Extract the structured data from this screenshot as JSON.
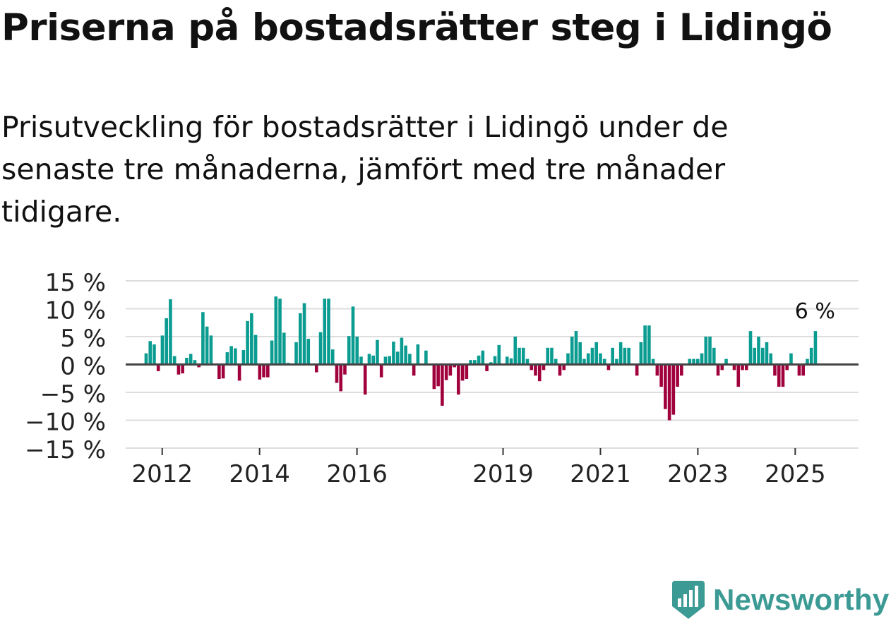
{
  "title": "Priserna på bostadsrätter steg i Lidingö",
  "subtitle": "Prisutveckling för bostadsrätter i Lidingö under de senaste tre månaderna, jämfört med tre månader tidigare.",
  "brand": "Newsworthy",
  "colors": {
    "positive": "#0b9c91",
    "negative": "#a0003c",
    "brand": "#3c9a94",
    "grid": "#dddddd",
    "zero_line": "#444444"
  },
  "chart_data": {
    "type": "bar",
    "title": "Priserna på bostadsrätter steg i Lidingö",
    "xlabel": "",
    "ylabel": "",
    "x_start": 2011.67,
    "x_step": 0.0833,
    "xlim": [
      2011.25,
      2026.3
    ],
    "ylim": [
      -15,
      15
    ],
    "yticks": [
      15,
      10,
      5,
      0,
      -5,
      -10,
      -15
    ],
    "ytick_labels": [
      "15 %",
      "10 %",
      "5 %",
      "0 %",
      "−5 %",
      "−10 %",
      "−15 %"
    ],
    "xticks": [
      2012,
      2014,
      2016,
      2019,
      2021,
      2023,
      2025
    ],
    "xtick_labels": [
      "2012",
      "2014",
      "2016",
      "2019",
      "2021",
      "2023",
      "2025"
    ],
    "annotation": "6 %",
    "values": [
      2,
      4.2,
      3.6,
      -1.2,
      5.2,
      8.3,
      11.7,
      1.5,
      -1.8,
      -1.6,
      1.2,
      1.9,
      0.8,
      -0.5,
      9.4,
      6.8,
      5.2,
      0,
      -2.6,
      -2.5,
      2.2,
      3.3,
      2.9,
      -2.9,
      2.6,
      7.8,
      9.2,
      5.3,
      -2.7,
      -2.3,
      -2.3,
      4.3,
      12.2,
      11.8,
      5.7,
      0.3,
      0,
      4,
      9.2,
      11,
      4.6,
      0,
      -1.4,
      5.8,
      11.8,
      11.8,
      2.7,
      -3.3,
      -4.8,
      -1.8,
      5.1,
      10.4,
      5,
      1.4,
      -5.4,
      1.9,
      1.6,
      4.4,
      -2.3,
      1.4,
      1.5,
      4.1,
      2.3,
      4.8,
      3.4,
      1.9,
      -2,
      3.6,
      0,
      2.5,
      0,
      -4.4,
      -3.9,
      -7.4,
      -2.8,
      -2,
      -0.5,
      -5.4,
      -2.9,
      -2.6,
      0.8,
      0.8,
      1.6,
      2.5,
      -1.2,
      0.4,
      1.5,
      3.5,
      0,
      1.4,
      1.1,
      5,
      3,
      3,
      1,
      -1,
      -2,
      -3,
      -1,
      3,
      3,
      1,
      -2,
      -1,
      2,
      5,
      6,
      4,
      1,
      2,
      3,
      4,
      2,
      1,
      -1,
      3,
      1,
      4,
      3,
      3,
      0,
      -2,
      4,
      7,
      7,
      1,
      -2,
      -4,
      -8,
      -10,
      -9,
      -4,
      -2,
      0,
      1,
      1,
      1,
      2,
      5,
      5,
      3,
      -2,
      -1,
      1,
      0,
      -1,
      -4,
      -1,
      -1,
      6,
      3,
      5,
      3,
      4,
      2,
      -2,
      -4,
      -4,
      -1,
      2,
      0,
      -2,
      -2,
      1,
      3,
      6
    ]
  }
}
